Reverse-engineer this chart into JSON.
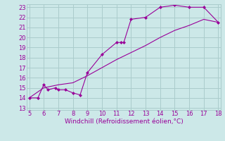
{
  "xlabel": "Windchill (Refroidissement éolien,°C)",
  "bg_color": "#cce8e8",
  "grid_color": "#aacccc",
  "line_color": "#990099",
  "xlim": [
    5,
    18
  ],
  "ylim": [
    13,
    23
  ],
  "xticks": [
    5,
    6,
    7,
    8,
    9,
    10,
    11,
    12,
    13,
    14,
    15,
    16,
    17,
    18
  ],
  "yticks": [
    13,
    14,
    15,
    16,
    17,
    18,
    19,
    20,
    21,
    22,
    23
  ],
  "line1_x": [
    5.0,
    5.6,
    6.0,
    6.3,
    6.8,
    7.0,
    7.5,
    8.0,
    8.5,
    9.0,
    10.0,
    11.0,
    11.3,
    11.5,
    12.0,
    13.0,
    14.0,
    15.0,
    16.0,
    17.0,
    18.0
  ],
  "line1_y": [
    14.0,
    14.0,
    15.3,
    14.8,
    15.0,
    14.8,
    14.8,
    14.5,
    14.3,
    16.5,
    18.3,
    19.5,
    19.5,
    19.5,
    21.8,
    22.0,
    23.0,
    23.2,
    23.0,
    23.0,
    21.5
  ],
  "line2_x": [
    5.0,
    6.0,
    7.0,
    8.0,
    9.0,
    10.0,
    11.0,
    12.0,
    13.0,
    14.0,
    15.0,
    16.0,
    17.0,
    18.0
  ],
  "line2_y": [
    14.0,
    15.0,
    15.3,
    15.5,
    16.2,
    17.0,
    17.8,
    18.5,
    19.2,
    20.0,
    20.7,
    21.2,
    21.8,
    21.5
  ],
  "xlabel_fontsize": 6.5,
  "tick_fontsize": 6.0
}
